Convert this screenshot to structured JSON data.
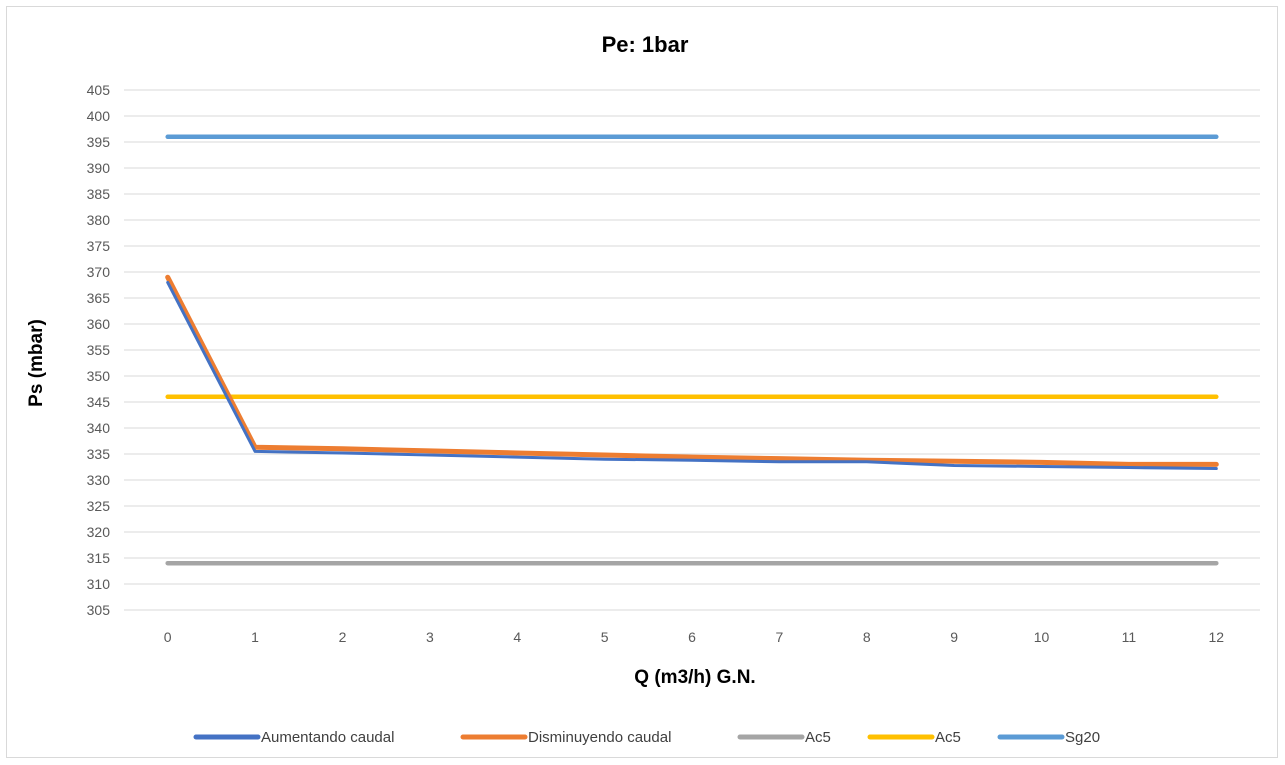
{
  "chart_data": {
    "type": "line",
    "title": "Pe: 1bar",
    "xlabel": "Q (m3/h) G.N.",
    "ylabel": "Ps (mbar)",
    "x": [
      0,
      1,
      2,
      3,
      4,
      5,
      6,
      7,
      8,
      9,
      10,
      11,
      12
    ],
    "ylim": [
      305,
      405
    ],
    "yticks": [
      305,
      310,
      315,
      320,
      325,
      330,
      335,
      340,
      345,
      350,
      355,
      360,
      365,
      370,
      375,
      380,
      385,
      390,
      395,
      400,
      405
    ],
    "grid": true,
    "legend_position": "bottom",
    "series": [
      {
        "name": "Aumentando caudal",
        "color": "#4472c4",
        "values": [
          368,
          335.5,
          335.2,
          334.8,
          334.4,
          334.0,
          333.8,
          333.5,
          333.5,
          332.8,
          332.6,
          332.4,
          332.2
        ]
      },
      {
        "name": "Disminuyendo caudal",
        "color": "#ed7d31",
        "values": [
          369,
          336.3,
          336.0,
          335.6,
          335.2,
          334.8,
          334.4,
          334.1,
          333.8,
          333.6,
          333.4,
          333.0,
          333.0
        ]
      },
      {
        "name": "Ac5",
        "color": "#a5a5a5",
        "values": [
          314,
          314,
          314,
          314,
          314,
          314,
          314,
          314,
          314,
          314,
          314,
          314,
          314
        ]
      },
      {
        "name": "Ac5",
        "color": "#ffc000",
        "values": [
          346,
          346,
          346,
          346,
          346,
          346,
          346,
          346,
          346,
          346,
          346,
          346,
          346
        ]
      },
      {
        "name": "Sg20",
        "color": "#5b9bd5",
        "values": [
          396,
          396,
          396,
          396,
          396,
          396,
          396,
          396,
          396,
          396,
          396,
          396,
          396
        ]
      }
    ]
  }
}
